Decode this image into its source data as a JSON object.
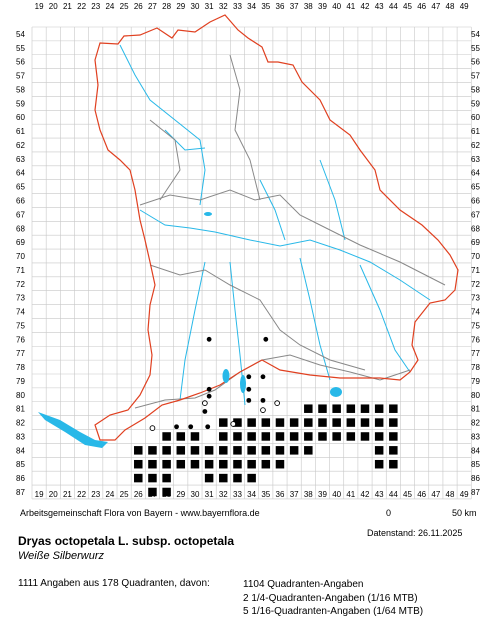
{
  "x_axis": [
    "19",
    "20",
    "21",
    "22",
    "23",
    "24",
    "25",
    "26",
    "27",
    "28",
    "29",
    "30",
    "31",
    "32",
    "33",
    "34",
    "35",
    "36",
    "37",
    "38",
    "39",
    "40",
    "41",
    "42",
    "43",
    "44",
    "45",
    "46",
    "47",
    "48",
    "49"
  ],
  "y_axis": [
    "54",
    "55",
    "56",
    "57",
    "58",
    "59",
    "60",
    "61",
    "62",
    "63",
    "64",
    "65",
    "66",
    "67",
    "68",
    "69",
    "70",
    "71",
    "72",
    "73",
    "74",
    "75",
    "76",
    "77",
    "78",
    "79",
    "80",
    "81",
    "82",
    "83",
    "84",
    "85",
    "86",
    "87"
  ],
  "credit": "Arbeitsgemeinschaft Flora von Bayern - www.bayernflora.de",
  "scale_start": "0",
  "scale_end": "50 km",
  "date_label": "Datenstand: 26.11.2025",
  "species_name": "Dryas octopetala L. subsp. octopetala",
  "common_name": "Weiße Silberwurz",
  "summary": "1111 Angaben aus 178 Quadranten, davon:",
  "stats": [
    "1104 Quadranten-Angaben",
    "2 1/4-Quadranten-Angaben (1/16 MTB)",
    "5 1/16-Quadranten-Angaben (1/64 MTB)"
  ],
  "colors": {
    "grid": "#c8c8c8",
    "state_border": "#e04020",
    "district_border": "#888888",
    "water": "#28b8e8",
    "marker": "#000000"
  },
  "filled_squares": [
    [
      38,
      81
    ],
    [
      39,
      81
    ],
    [
      40,
      81
    ],
    [
      41,
      81
    ],
    [
      42,
      81
    ],
    [
      43,
      81
    ],
    [
      44,
      81
    ],
    [
      32,
      82
    ],
    [
      33,
      82
    ],
    [
      34,
      82
    ],
    [
      35,
      82
    ],
    [
      36,
      82
    ],
    [
      37,
      82
    ],
    [
      38,
      82
    ],
    [
      39,
      82
    ],
    [
      40,
      82
    ],
    [
      41,
      82
    ],
    [
      42,
      82
    ],
    [
      43,
      82
    ],
    [
      44,
      82
    ],
    [
      28,
      83
    ],
    [
      29,
      83
    ],
    [
      30,
      83
    ],
    [
      32,
      83
    ],
    [
      33,
      83
    ],
    [
      34,
      83
    ],
    [
      35,
      83
    ],
    [
      36,
      83
    ],
    [
      37,
      83
    ],
    [
      38,
      83
    ],
    [
      39,
      83
    ],
    [
      40,
      83
    ],
    [
      41,
      83
    ],
    [
      42,
      83
    ],
    [
      43,
      83
    ],
    [
      44,
      83
    ],
    [
      26,
      84
    ],
    [
      27,
      84
    ],
    [
      28,
      84
    ],
    [
      29,
      84
    ],
    [
      30,
      84
    ],
    [
      31,
      84
    ],
    [
      32,
      84
    ],
    [
      33,
      84
    ],
    [
      34,
      84
    ],
    [
      35,
      84
    ],
    [
      36,
      84
    ],
    [
      37,
      84
    ],
    [
      38,
      84
    ],
    [
      43,
      84
    ],
    [
      44,
      84
    ],
    [
      26,
      85
    ],
    [
      27,
      85
    ],
    [
      28,
      85
    ],
    [
      29,
      85
    ],
    [
      30,
      85
    ],
    [
      31,
      85
    ],
    [
      32,
      85
    ],
    [
      33,
      85
    ],
    [
      34,
      85
    ],
    [
      35,
      85
    ],
    [
      36,
      85
    ],
    [
      43,
      85
    ],
    [
      44,
      85
    ],
    [
      26,
      86
    ],
    [
      27,
      86
    ],
    [
      28,
      86
    ],
    [
      31,
      86
    ],
    [
      32,
      86
    ],
    [
      33,
      86
    ],
    [
      34,
      86
    ],
    [
      27,
      87
    ],
    [
      28,
      87
    ]
  ],
  "quarter_dots": [
    [
      31.5,
      76.5
    ],
    [
      35.5,
      76.5
    ],
    [
      34.3,
      79.2
    ],
    [
      35.3,
      79.2
    ],
    [
      31.5,
      80.1
    ],
    [
      34.3,
      80.1
    ],
    [
      31.5,
      80.6
    ],
    [
      34.3,
      80.9
    ],
    [
      35.3,
      80.9
    ],
    [
      31.2,
      81.7
    ],
    [
      29.2,
      82.8
    ],
    [
      30.2,
      82.8
    ],
    [
      31.4,
      82.8
    ]
  ],
  "open_circles": [
    [
      27.5,
      82.9
    ],
    [
      31.2,
      81.1
    ],
    [
      33.2,
      82.6
    ],
    [
      35.3,
      81.6
    ],
    [
      36.3,
      81.1
    ]
  ]
}
